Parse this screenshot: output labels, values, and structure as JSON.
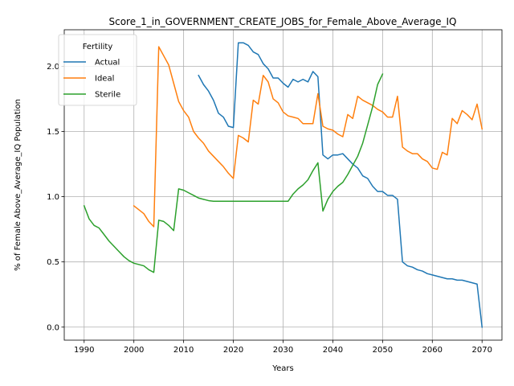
{
  "chart_data": {
    "type": "line",
    "title": "Score_1_in_GOVERNMENT_CREATE_JOBS_for_Female_Above_Average_IQ",
    "xlabel": "Years",
    "ylabel": "% of Female Above_Average_IQ Population",
    "xlim": [
      1986,
      2074
    ],
    "ylim": [
      -0.1,
      2.28
    ],
    "xticks": [
      1990,
      2000,
      2010,
      2020,
      2030,
      2040,
      2050,
      2060,
      2070
    ],
    "yticks": [
      0.0,
      0.5,
      1.0,
      1.5,
      2.0
    ],
    "xtick_labels": [
      "1990",
      "2000",
      "2010",
      "2020",
      "2030",
      "2040",
      "2050",
      "2060",
      "2070"
    ],
    "ytick_labels": [
      "0.0",
      "0.5",
      "1.0",
      "1.5",
      "2.0"
    ],
    "grid": true,
    "legend": {
      "title": "Fertility",
      "placement": "top-left"
    },
    "series": [
      {
        "name": "Actual",
        "color": "#1f77b4",
        "points": [
          [
            2013,
            1.93
          ],
          [
            2014,
            1.86
          ],
          [
            2015,
            1.81
          ],
          [
            2016,
            1.74
          ],
          [
            2017,
            1.64
          ],
          [
            2018,
            1.61
          ],
          [
            2019,
            1.54
          ],
          [
            2020,
            1.53
          ],
          [
            2021,
            2.18
          ],
          [
            2022,
            2.18
          ],
          [
            2023,
            2.16
          ],
          [
            2024,
            2.11
          ],
          [
            2025,
            2.09
          ],
          [
            2026,
            2.02
          ],
          [
            2027,
            1.98
          ],
          [
            2028,
            1.91
          ],
          [
            2029,
            1.91
          ],
          [
            2030,
            1.87
          ],
          [
            2031,
            1.84
          ],
          [
            2032,
            1.9
          ],
          [
            2033,
            1.88
          ],
          [
            2034,
            1.9
          ],
          [
            2035,
            1.88
          ],
          [
            2036,
            1.96
          ],
          [
            2037,
            1.92
          ],
          [
            2038,
            1.32
          ],
          [
            2039,
            1.29
          ],
          [
            2040,
            1.32
          ],
          [
            2041,
            1.32
          ],
          [
            2042,
            1.33
          ],
          [
            2043,
            1.29
          ],
          [
            2044,
            1.25
          ],
          [
            2045,
            1.22
          ],
          [
            2046,
            1.16
          ],
          [
            2047,
            1.14
          ],
          [
            2048,
            1.08
          ],
          [
            2049,
            1.04
          ],
          [
            2050,
            1.04
          ],
          [
            2051,
            1.01
          ],
          [
            2052,
            1.01
          ],
          [
            2053,
            0.98
          ],
          [
            2054,
            0.5
          ],
          [
            2055,
            0.47
          ],
          [
            2056,
            0.46
          ],
          [
            2057,
            0.44
          ],
          [
            2058,
            0.43
          ],
          [
            2059,
            0.41
          ],
          [
            2060,
            0.4
          ],
          [
            2061,
            0.39
          ],
          [
            2062,
            0.38
          ],
          [
            2063,
            0.37
          ],
          [
            2064,
            0.37
          ],
          [
            2065,
            0.36
          ],
          [
            2066,
            0.36
          ],
          [
            2067,
            0.35
          ],
          [
            2068,
            0.34
          ],
          [
            2069,
            0.33
          ],
          [
            2070,
            0.0
          ]
        ]
      },
      {
        "name": "Ideal",
        "color": "#ff7f0e",
        "points": [
          [
            2000,
            0.93
          ],
          [
            2001,
            0.9
          ],
          [
            2002,
            0.87
          ],
          [
            2003,
            0.81
          ],
          [
            2004,
            0.77
          ],
          [
            2005,
            2.15
          ],
          [
            2006,
            2.08
          ],
          [
            2007,
            2.01
          ],
          [
            2008,
            1.87
          ],
          [
            2009,
            1.73
          ],
          [
            2010,
            1.66
          ],
          [
            2011,
            1.61
          ],
          [
            2012,
            1.5
          ],
          [
            2013,
            1.45
          ],
          [
            2014,
            1.41
          ],
          [
            2015,
            1.35
          ],
          [
            2016,
            1.31
          ],
          [
            2017,
            1.27
          ],
          [
            2018,
            1.23
          ],
          [
            2019,
            1.18
          ],
          [
            2020,
            1.14
          ],
          [
            2021,
            1.47
          ],
          [
            2022,
            1.45
          ],
          [
            2023,
            1.42
          ],
          [
            2024,
            1.74
          ],
          [
            2025,
            1.71
          ],
          [
            2026,
            1.93
          ],
          [
            2027,
            1.88
          ],
          [
            2028,
            1.75
          ],
          [
            2029,
            1.72
          ],
          [
            2030,
            1.65
          ],
          [
            2031,
            1.62
          ],
          [
            2032,
            1.61
          ],
          [
            2033,
            1.6
          ],
          [
            2034,
            1.56
          ],
          [
            2035,
            1.56
          ],
          [
            2036,
            1.56
          ],
          [
            2037,
            1.79
          ],
          [
            2038,
            1.54
          ],
          [
            2039,
            1.52
          ],
          [
            2040,
            1.51
          ],
          [
            2041,
            1.48
          ],
          [
            2042,
            1.46
          ],
          [
            2043,
            1.63
          ],
          [
            2044,
            1.6
          ],
          [
            2045,
            1.77
          ],
          [
            2046,
            1.74
          ],
          [
            2047,
            1.72
          ],
          [
            2048,
            1.7
          ],
          [
            2049,
            1.67
          ],
          [
            2050,
            1.65
          ],
          [
            2051,
            1.61
          ],
          [
            2052,
            1.61
          ],
          [
            2053,
            1.77
          ],
          [
            2054,
            1.38
          ],
          [
            2055,
            1.35
          ],
          [
            2056,
            1.33
          ],
          [
            2057,
            1.33
          ],
          [
            2058,
            1.29
          ],
          [
            2059,
            1.27
          ],
          [
            2060,
            1.22
          ],
          [
            2061,
            1.21
          ],
          [
            2062,
            1.34
          ],
          [
            2063,
            1.32
          ],
          [
            2064,
            1.6
          ],
          [
            2065,
            1.56
          ],
          [
            2066,
            1.66
          ],
          [
            2067,
            1.63
          ],
          [
            2068,
            1.59
          ],
          [
            2069,
            1.71
          ],
          [
            2070,
            1.52
          ]
        ]
      },
      {
        "name": "Sterile",
        "color": "#2ca02c",
        "points": [
          [
            1990,
            0.93
          ],
          [
            1991,
            0.83
          ],
          [
            1992,
            0.78
          ],
          [
            1993,
            0.76
          ],
          [
            1994,
            0.71
          ],
          [
            1995,
            0.66
          ],
          [
            1996,
            0.62
          ],
          [
            1997,
            0.58
          ],
          [
            1998,
            0.54
          ],
          [
            1999,
            0.51
          ],
          [
            2000,
            0.49
          ],
          [
            2001,
            0.48
          ],
          [
            2002,
            0.47
          ],
          [
            2003,
            0.44
          ],
          [
            2004,
            0.42
          ],
          [
            2005,
            0.82
          ],
          [
            2006,
            0.81
          ],
          [
            2007,
            0.78
          ],
          [
            2008,
            0.74
          ],
          [
            2009,
            1.06
          ],
          [
            2010,
            1.05
          ],
          [
            2011,
            1.03
          ],
          [
            2012,
            1.01
          ],
          [
            2013,
            0.99
          ],
          [
            2014,
            0.98
          ],
          [
            2015,
            0.97
          ],
          [
            2016,
            0.965
          ],
          [
            2017,
            0.965
          ],
          [
            2018,
            0.965
          ],
          [
            2019,
            0.965
          ],
          [
            2020,
            0.965
          ],
          [
            2021,
            0.965
          ],
          [
            2022,
            0.965
          ],
          [
            2023,
            0.965
          ],
          [
            2024,
            0.965
          ],
          [
            2025,
            0.965
          ],
          [
            2026,
            0.965
          ],
          [
            2027,
            0.965
          ],
          [
            2028,
            0.965
          ],
          [
            2029,
            0.965
          ],
          [
            2030,
            0.965
          ],
          [
            2031,
            0.965
          ],
          [
            2032,
            1.02
          ],
          [
            2033,
            1.06
          ],
          [
            2034,
            1.09
          ],
          [
            2035,
            1.13
          ],
          [
            2036,
            1.2
          ],
          [
            2037,
            1.26
          ],
          [
            2038,
            0.89
          ],
          [
            2039,
            0.98
          ],
          [
            2040,
            1.04
          ],
          [
            2041,
            1.08
          ],
          [
            2042,
            1.11
          ],
          [
            2043,
            1.17
          ],
          [
            2044,
            1.24
          ],
          [
            2045,
            1.31
          ],
          [
            2046,
            1.41
          ],
          [
            2047,
            1.55
          ],
          [
            2048,
            1.69
          ],
          [
            2049,
            1.86
          ],
          [
            2050,
            1.94
          ]
        ]
      }
    ]
  }
}
